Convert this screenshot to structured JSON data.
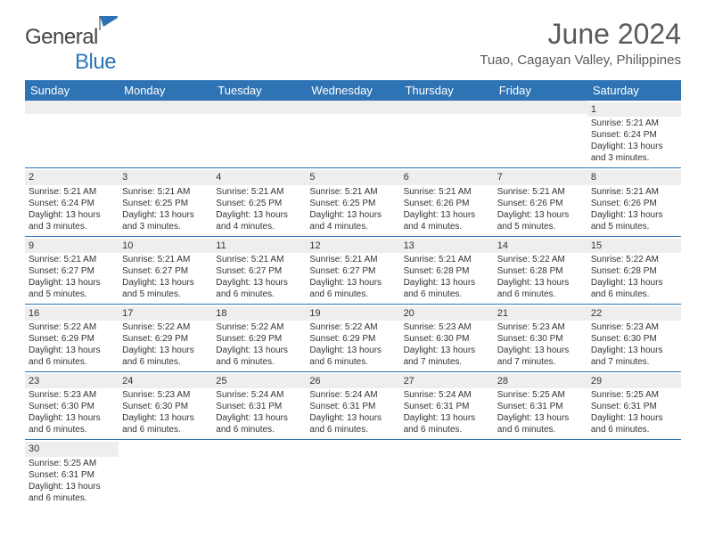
{
  "logo": {
    "text1": "General",
    "text2": "Blue"
  },
  "title": "June 2024",
  "location": "Tuao, Cagayan Valley, Philippines",
  "colors": {
    "header_blue": "#2e74b5",
    "grey_bg": "#eeeeee",
    "text": "#333333",
    "title_text": "#5a5a5a"
  },
  "dayHeaders": [
    "Sunday",
    "Monday",
    "Tuesday",
    "Wednesday",
    "Thursday",
    "Friday",
    "Saturday"
  ],
  "weeks": [
    [
      null,
      null,
      null,
      null,
      null,
      null,
      {
        "n": "1",
        "sr": "5:21 AM",
        "ss": "6:24 PM",
        "dl": "13 hours and 3 minutes."
      }
    ],
    [
      {
        "n": "2",
        "sr": "5:21 AM",
        "ss": "6:24 PM",
        "dl": "13 hours and 3 minutes."
      },
      {
        "n": "3",
        "sr": "5:21 AM",
        "ss": "6:25 PM",
        "dl": "13 hours and 3 minutes."
      },
      {
        "n": "4",
        "sr": "5:21 AM",
        "ss": "6:25 PM",
        "dl": "13 hours and 4 minutes."
      },
      {
        "n": "5",
        "sr": "5:21 AM",
        "ss": "6:25 PM",
        "dl": "13 hours and 4 minutes."
      },
      {
        "n": "6",
        "sr": "5:21 AM",
        "ss": "6:26 PM",
        "dl": "13 hours and 4 minutes."
      },
      {
        "n": "7",
        "sr": "5:21 AM",
        "ss": "6:26 PM",
        "dl": "13 hours and 5 minutes."
      },
      {
        "n": "8",
        "sr": "5:21 AM",
        "ss": "6:26 PM",
        "dl": "13 hours and 5 minutes."
      }
    ],
    [
      {
        "n": "9",
        "sr": "5:21 AM",
        "ss": "6:27 PM",
        "dl": "13 hours and 5 minutes."
      },
      {
        "n": "10",
        "sr": "5:21 AM",
        "ss": "6:27 PM",
        "dl": "13 hours and 5 minutes."
      },
      {
        "n": "11",
        "sr": "5:21 AM",
        "ss": "6:27 PM",
        "dl": "13 hours and 6 minutes."
      },
      {
        "n": "12",
        "sr": "5:21 AM",
        "ss": "6:27 PM",
        "dl": "13 hours and 6 minutes."
      },
      {
        "n": "13",
        "sr": "5:21 AM",
        "ss": "6:28 PM",
        "dl": "13 hours and 6 minutes."
      },
      {
        "n": "14",
        "sr": "5:22 AM",
        "ss": "6:28 PM",
        "dl": "13 hours and 6 minutes."
      },
      {
        "n": "15",
        "sr": "5:22 AM",
        "ss": "6:28 PM",
        "dl": "13 hours and 6 minutes."
      }
    ],
    [
      {
        "n": "16",
        "sr": "5:22 AM",
        "ss": "6:29 PM",
        "dl": "13 hours and 6 minutes."
      },
      {
        "n": "17",
        "sr": "5:22 AM",
        "ss": "6:29 PM",
        "dl": "13 hours and 6 minutes."
      },
      {
        "n": "18",
        "sr": "5:22 AM",
        "ss": "6:29 PM",
        "dl": "13 hours and 6 minutes."
      },
      {
        "n": "19",
        "sr": "5:22 AM",
        "ss": "6:29 PM",
        "dl": "13 hours and 6 minutes."
      },
      {
        "n": "20",
        "sr": "5:23 AM",
        "ss": "6:30 PM",
        "dl": "13 hours and 7 minutes."
      },
      {
        "n": "21",
        "sr": "5:23 AM",
        "ss": "6:30 PM",
        "dl": "13 hours and 7 minutes."
      },
      {
        "n": "22",
        "sr": "5:23 AM",
        "ss": "6:30 PM",
        "dl": "13 hours and 7 minutes."
      }
    ],
    [
      {
        "n": "23",
        "sr": "5:23 AM",
        "ss": "6:30 PM",
        "dl": "13 hours and 6 minutes."
      },
      {
        "n": "24",
        "sr": "5:23 AM",
        "ss": "6:30 PM",
        "dl": "13 hours and 6 minutes."
      },
      {
        "n": "25",
        "sr": "5:24 AM",
        "ss": "6:31 PM",
        "dl": "13 hours and 6 minutes."
      },
      {
        "n": "26",
        "sr": "5:24 AM",
        "ss": "6:31 PM",
        "dl": "13 hours and 6 minutes."
      },
      {
        "n": "27",
        "sr": "5:24 AM",
        "ss": "6:31 PM",
        "dl": "13 hours and 6 minutes."
      },
      {
        "n": "28",
        "sr": "5:25 AM",
        "ss": "6:31 PM",
        "dl": "13 hours and 6 minutes."
      },
      {
        "n": "29",
        "sr": "5:25 AM",
        "ss": "6:31 PM",
        "dl": "13 hours and 6 minutes."
      }
    ],
    [
      {
        "n": "30",
        "sr": "5:25 AM",
        "ss": "6:31 PM",
        "dl": "13 hours and 6 minutes."
      },
      null,
      null,
      null,
      null,
      null,
      null
    ]
  ],
  "labels": {
    "sunrise": "Sunrise:",
    "sunset": "Sunset:",
    "daylight": "Daylight:"
  }
}
